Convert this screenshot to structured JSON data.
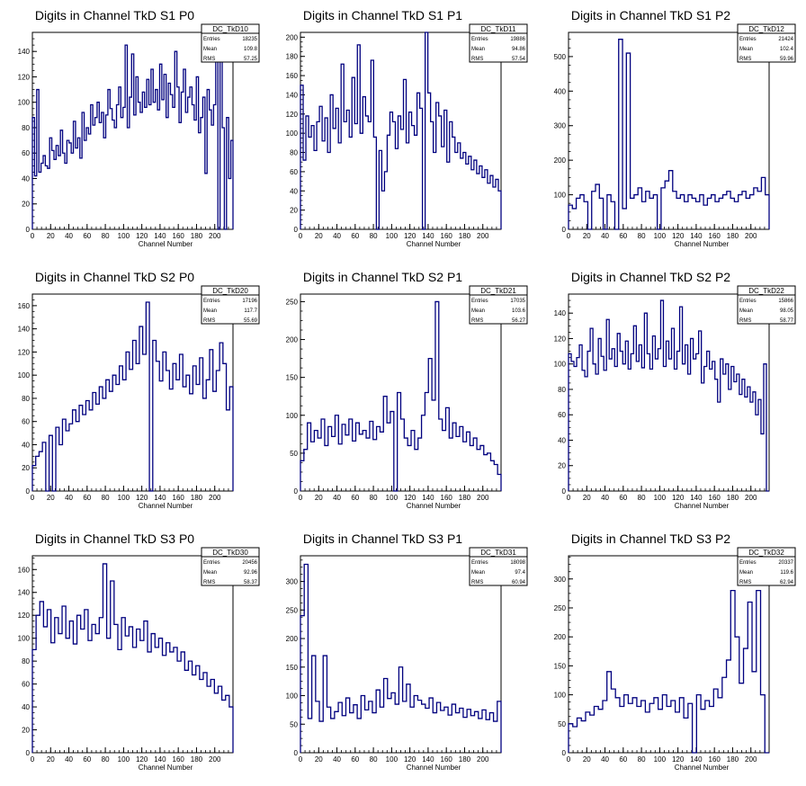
{
  "page": {
    "xlabel": "Channel Number",
    "line_color": "#00007f",
    "frame_color": "#000000"
  },
  "chart_data": [
    {
      "type": "histogram-step",
      "title": "Digits in Channel TkD S1 P0",
      "stats": {
        "name": "DC_TkD10",
        "entries": "18235",
        "mean": "109.8",
        "rms": "57.25"
      },
      "xlabel": "Channel Number",
      "xlim": [
        0,
        220
      ],
      "ylim": [
        0,
        155
      ],
      "xticks": [
        0,
        20,
        40,
        60,
        80,
        100,
        120,
        140,
        160,
        180,
        200
      ],
      "yticks": [
        0,
        20,
        40,
        60,
        80,
        100,
        120,
        140
      ],
      "values": [
        88,
        42,
        110,
        45,
        52,
        58,
        50,
        48,
        72,
        62,
        55,
        66,
        58,
        78,
        60,
        52,
        70,
        68,
        60,
        85,
        64,
        72,
        56,
        92,
        70,
        80,
        75,
        98,
        82,
        88,
        100,
        84,
        92,
        72,
        90,
        110,
        95,
        86,
        80,
        98,
        112,
        88,
        96,
        145,
        80,
        104,
        138,
        90,
        120,
        100,
        92,
        108,
        96,
        118,
        98,
        126,
        100,
        110,
        94,
        130,
        102,
        122,
        88,
        115,
        106,
        96,
        140,
        112,
        84,
        108,
        126,
        92,
        104,
        112,
        98,
        86,
        120,
        76,
        88,
        104,
        44,
        110,
        94,
        82,
        98,
        150,
        0,
        132,
        80,
        0,
        88,
        40,
        70
      ]
    },
    {
      "type": "histogram-step",
      "title": "Digits in Channel TkD S1 P1",
      "stats": {
        "name": "DC_TkD11",
        "entries": "19886",
        "mean": "94.86",
        "rms": "57.54"
      },
      "xlabel": "Channel Number",
      "xlim": [
        0,
        220
      ],
      "ylim": [
        0,
        205
      ],
      "xticks": [
        0,
        20,
        40,
        60,
        80,
        100,
        120,
        140,
        160,
        180,
        200
      ],
      "yticks": [
        0,
        20,
        40,
        60,
        80,
        100,
        120,
        140,
        160,
        180,
        200
      ],
      "values": [
        150,
        72,
        118,
        96,
        108,
        82,
        112,
        128,
        92,
        116,
        80,
        140,
        105,
        126,
        90,
        172,
        112,
        124,
        96,
        158,
        110,
        192,
        100,
        138,
        118,
        112,
        176,
        96,
        0,
        82,
        40,
        60,
        98,
        122,
        112,
        84,
        118,
        104,
        156,
        90,
        122,
        108,
        98,
        142,
        126,
        0,
        210,
        142,
        112,
        80,
        132,
        118,
        86,
        124,
        70,
        112,
        96,
        80,
        90,
        74,
        80,
        68,
        76,
        62,
        72,
        58,
        66,
        54,
        62,
        48,
        56,
        44,
        52,
        40
      ]
    },
    {
      "type": "histogram-step",
      "title": "Digits in Channel TkD S1 P2",
      "stats": {
        "name": "DC_TkD12",
        "entries": "21424",
        "mean": "102.4",
        "rms": "59.96"
      },
      "xlabel": "Channel Number",
      "xlim": [
        0,
        220
      ],
      "ylim": [
        0,
        570
      ],
      "xticks": [
        0,
        20,
        40,
        60,
        80,
        100,
        120,
        140,
        160,
        180,
        200
      ],
      "yticks": [
        0,
        100,
        200,
        300,
        400,
        500
      ],
      "values": [
        70,
        60,
        90,
        100,
        80,
        0,
        110,
        130,
        90,
        0,
        100,
        80,
        0,
        550,
        60,
        510,
        90,
        100,
        120,
        80,
        110,
        90,
        100,
        0,
        120,
        140,
        170,
        110,
        90,
        100,
        80,
        100,
        90,
        80,
        100,
        70,
        90,
        100,
        80,
        90,
        100,
        110,
        90,
        80,
        100,
        110,
        90,
        100,
        120,
        110,
        150,
        100
      ]
    },
    {
      "type": "histogram-step",
      "title": "Digits in Channel TkD S2 P0",
      "stats": {
        "name": "DC_TkD20",
        "entries": "17196",
        "mean": "117.7",
        "rms": "55.69"
      },
      "xlabel": "Channel Number",
      "xlim": [
        0,
        220
      ],
      "ylim": [
        0,
        170
      ],
      "xticks": [
        0,
        20,
        40,
        60,
        80,
        100,
        120,
        140,
        160,
        180,
        200
      ],
      "yticks": [
        0,
        20,
        40,
        60,
        80,
        100,
        120,
        140,
        160
      ],
      "values": [
        22,
        30,
        34,
        42,
        0,
        48,
        0,
        55,
        40,
        62,
        52,
        58,
        70,
        60,
        74,
        66,
        78,
        70,
        85,
        75,
        90,
        80,
        96,
        86,
        100,
        92,
        108,
        96,
        120,
        105,
        130,
        110,
        142,
        118,
        163,
        0,
        130,
        112,
        95,
        120,
        104,
        88,
        110,
        96,
        118,
        90,
        100,
        84,
        108,
        92,
        115,
        80,
        96,
        122,
        86,
        104,
        128,
        110,
        70,
        90
      ]
    },
    {
      "type": "histogram-step",
      "title": "Digits in Channel TkD S2 P1",
      "stats": {
        "name": "DC_TkD21",
        "entries": "17035",
        "mean": "103.6",
        "rms": "56.27"
      },
      "xlabel": "Channel Number",
      "xlim": [
        0,
        220
      ],
      "ylim": [
        0,
        260
      ],
      "xticks": [
        0,
        20,
        40,
        60,
        80,
        100,
        120,
        140,
        160,
        180,
        200
      ],
      "yticks": [
        0,
        50,
        100,
        150,
        200,
        250
      ],
      "values": [
        40,
        55,
        90,
        65,
        80,
        70,
        95,
        60,
        85,
        72,
        100,
        62,
        88,
        74,
        95,
        66,
        90,
        75,
        80,
        70,
        92,
        68,
        85,
        78,
        125,
        90,
        105,
        0,
        130,
        95,
        70,
        60,
        80,
        55,
        70,
        100,
        130,
        175,
        120,
        250,
        95,
        80,
        110,
        70,
        90,
        72,
        85,
        65,
        78,
        60,
        70,
        55,
        60,
        48,
        50,
        40,
        35,
        22
      ]
    },
    {
      "type": "histogram-step",
      "title": "Digits in Channel TkD S2 P2",
      "stats": {
        "name": "DC_TkD22",
        "entries": "15866",
        "mean": "98.05",
        "rms": "58.77"
      },
      "xlabel": "Channel Number",
      "xlim": [
        0,
        220
      ],
      "ylim": [
        0,
        155
      ],
      "xticks": [
        0,
        20,
        40,
        60,
        80,
        100,
        120,
        140,
        160,
        180,
        200
      ],
      "yticks": [
        0,
        20,
        40,
        60,
        80,
        100,
        120,
        140
      ],
      "values": [
        108,
        102,
        98,
        105,
        115,
        95,
        90,
        110,
        128,
        100,
        92,
        120,
        106,
        95,
        135,
        104,
        112,
        98,
        124,
        110,
        100,
        118,
        96,
        108,
        130,
        102,
        115,
        97,
        140,
        108,
        96,
        122,
        104,
        112,
        150,
        98,
        118,
        104,
        128,
        96,
        110,
        145,
        100,
        115,
        92,
        120,
        104,
        108,
        126,
        85,
        98,
        110,
        96,
        102,
        88,
        70,
        104,
        92,
        100,
        80,
        98,
        86,
        92,
        76,
        88,
        74,
        82,
        70,
        78,
        60,
        72,
        45,
        100,
        0
      ]
    },
    {
      "type": "histogram-step",
      "title": "Digits in Channel TkD S3 P0",
      "stats": {
        "name": "DC_TkD30",
        "entries": "20456",
        "mean": "92.96",
        "rms": "58.37"
      },
      "xlabel": "Channel Number",
      "xlim": [
        0,
        220
      ],
      "ylim": [
        0,
        172
      ],
      "xticks": [
        0,
        20,
        40,
        60,
        80,
        100,
        120,
        140,
        160,
        180,
        200
      ],
      "yticks": [
        0,
        20,
        40,
        60,
        80,
        100,
        120,
        140,
        160
      ],
      "values": [
        90,
        120,
        132,
        110,
        125,
        96,
        118,
        104,
        128,
        100,
        115,
        95,
        120,
        108,
        125,
        98,
        112,
        104,
        118,
        165,
        100,
        150,
        112,
        90,
        118,
        102,
        110,
        92,
        108,
        98,
        115,
        88,
        104,
        92,
        100,
        85,
        96,
        88,
        92,
        80,
        88,
        72,
        80,
        68,
        76,
        64,
        70,
        58,
        64,
        52,
        58,
        46,
        50,
        40
      ]
    },
    {
      "type": "histogram-step",
      "title": "Digits in Channel TkD S3 P1",
      "stats": {
        "name": "DC_TkD31",
        "entries": "18098",
        "mean": "97.4",
        "rms": "60.94"
      },
      "xlabel": "Channel Number",
      "xlim": [
        0,
        220
      ],
      "ylim": [
        0,
        345
      ],
      "xticks": [
        0,
        20,
        40,
        60,
        80,
        100,
        120,
        140,
        160,
        180,
        200
      ],
      "yticks": [
        0,
        50,
        100,
        150,
        200,
        250,
        300
      ],
      "values": [
        240,
        330,
        60,
        170,
        90,
        55,
        170,
        80,
        60,
        72,
        88,
        65,
        96,
        70,
        84,
        60,
        100,
        75,
        90,
        70,
        110,
        80,
        130,
        95,
        105,
        85,
        150,
        90,
        120,
        80,
        100,
        92,
        85,
        78,
        96,
        70,
        88,
        74,
        80,
        66,
        85,
        70,
        78,
        62,
        76,
        65,
        72,
        60,
        75,
        58,
        70,
        55,
        90
      ]
    },
    {
      "type": "histogram-step",
      "title": "Digits in Channel TkD S3 P2",
      "stats": {
        "name": "DC_TkD32",
        "entries": "20337",
        "mean": "119.6",
        "rms": "62.94"
      },
      "xlabel": "Channel Number",
      "xlim": [
        0,
        220
      ],
      "ylim": [
        0,
        340
      ],
      "xticks": [
        0,
        20,
        40,
        60,
        80,
        100,
        120,
        140,
        160,
        180,
        200
      ],
      "yticks": [
        0,
        50,
        100,
        150,
        200,
        250,
        300
      ],
      "values": [
        50,
        45,
        60,
        55,
        70,
        65,
        80,
        75,
        90,
        140,
        110,
        95,
        80,
        100,
        85,
        95,
        80,
        90,
        70,
        85,
        95,
        75,
        100,
        80,
        90,
        70,
        95,
        60,
        85,
        0,
        100,
        75,
        90,
        80,
        110,
        95,
        130,
        160,
        280,
        200,
        120,
        180,
        260,
        140,
        280,
        100,
        0
      ]
    }
  ]
}
